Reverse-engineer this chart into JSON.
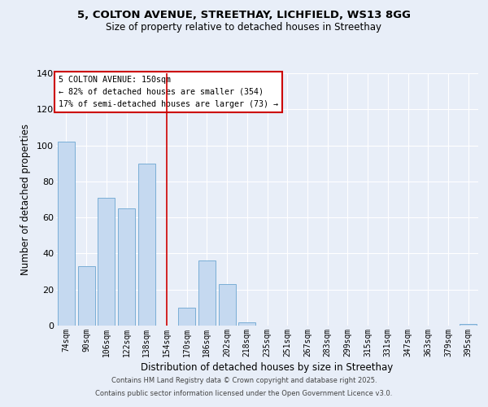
{
  "title_line1": "5, COLTON AVENUE, STREETHAY, LICHFIELD, WS13 8GG",
  "title_line2": "Size of property relative to detached houses in Streethay",
  "xlabel": "Distribution of detached houses by size in Streethay",
  "ylabel": "Number of detached properties",
  "bar_labels": [
    "74sqm",
    "90sqm",
    "106sqm",
    "122sqm",
    "138sqm",
    "154sqm",
    "170sqm",
    "186sqm",
    "202sqm",
    "218sqm",
    "235sqm",
    "251sqm",
    "267sqm",
    "283sqm",
    "299sqm",
    "315sqm",
    "331sqm",
    "347sqm",
    "363sqm",
    "379sqm",
    "395sqm"
  ],
  "bar_values": [
    102,
    33,
    71,
    65,
    90,
    0,
    10,
    36,
    23,
    2,
    0,
    0,
    0,
    0,
    0,
    0,
    0,
    0,
    0,
    0,
    1
  ],
  "bar_color": "#c5d9f0",
  "bar_edge_color": "#7aaed6",
  "bg_color": "#e8eef8",
  "plot_bg_color": "#e8eef8",
  "grid_color": "#ffffff",
  "ylim": [
    0,
    140
  ],
  "yticks": [
    0,
    20,
    40,
    60,
    80,
    100,
    120,
    140
  ],
  "vline_x": 5,
  "vline_color": "#cc0000",
  "annotation_title": "5 COLTON AVENUE: 150sqm",
  "annotation_line1": "← 82% of detached houses are smaller (354)",
  "annotation_line2": "17% of semi-detached houses are larger (73) →",
  "annotation_box_color": "#ffffff",
  "annotation_box_edge": "#cc0000",
  "footer_line1": "Contains HM Land Registry data © Crown copyright and database right 2025.",
  "footer_line2": "Contains public sector information licensed under the Open Government Licence v3.0."
}
